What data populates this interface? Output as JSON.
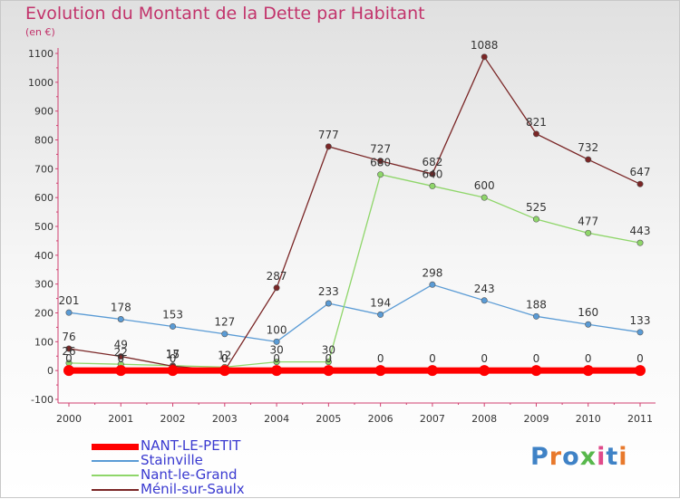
{
  "title": "Evolution du Montant de la Dette par Habitant",
  "subtitle": "(en €)",
  "logo_text": "Proxiti",
  "chart_data": {
    "type": "line",
    "x": [
      "2000",
      "2001",
      "2002",
      "2003",
      "2004",
      "2005",
      "2006",
      "2007",
      "2008",
      "2009",
      "2010",
      "2011"
    ],
    "ylim": [
      -100,
      1100
    ],
    "yticks": [
      -100,
      0,
      100,
      200,
      300,
      400,
      500,
      600,
      700,
      800,
      900,
      1000,
      1100
    ],
    "grid": false,
    "legend_position": "bottom-left",
    "series": [
      {
        "name": "NANT-LE-PETIT",
        "color": "#ff0000",
        "values": [
          0,
          0,
          0,
          0,
          0,
          0,
          0,
          0,
          0,
          0,
          0,
          0
        ],
        "labels": [
          "0",
          "0",
          "0",
          "0",
          "0",
          "0",
          "0",
          "0",
          "0",
          "0",
          "0",
          "0"
        ]
      },
      {
        "name": "Stainville",
        "color": "#5a9bd5",
        "values": [
          201,
          178,
          153,
          127,
          100,
          233,
          194,
          298,
          243,
          188,
          160,
          133
        ],
        "labels": [
          "201",
          "178",
          "153",
          "127",
          "100",
          "233",
          "194",
          "298",
          "243",
          "188",
          "160",
          "133"
        ]
      },
      {
        "name": "Nant-le-Grand",
        "color": "#8fd66a",
        "values": [
          26,
          22,
          17,
          12,
          30,
          30,
          680,
          640,
          600,
          525,
          477,
          443
        ],
        "labels": [
          "26",
          "22",
          "17",
          "12",
          "30",
          "30",
          "680",
          "640",
          "600",
          "525",
          "477",
          "443"
        ]
      },
      {
        "name": "Ménil-sur-Saulx",
        "color": "#7a2626",
        "values": [
          76,
          49,
          15,
          0,
          287,
          777,
          727,
          682,
          1088,
          821,
          732,
          647
        ],
        "labels": [
          "76",
          "49",
          "15",
          "0",
          "287",
          "777",
          "727",
          "682",
          "1088",
          "821",
          "732",
          "647"
        ]
      }
    ]
  }
}
